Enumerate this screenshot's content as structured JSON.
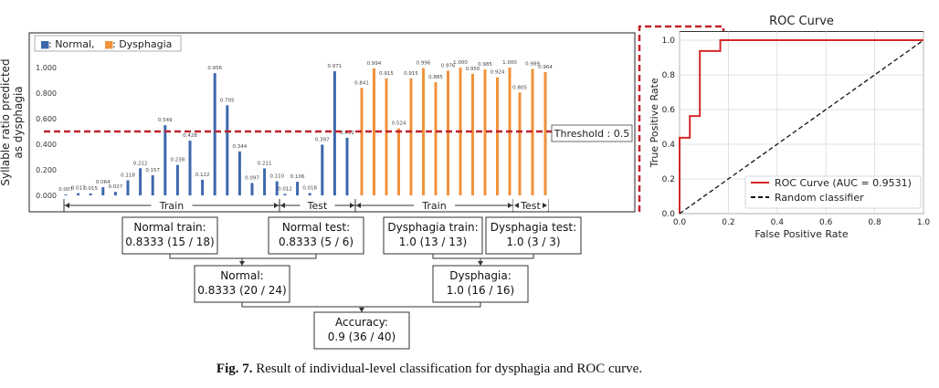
{
  "chart_data": [
    {
      "type": "bar",
      "ylabel": "Syllable ratio predicted as dysphagia",
      "ylim": [
        0,
        1.1
      ],
      "yticks": [
        "0.000",
        "0.200",
        "0.400",
        "0.600",
        "0.800",
        "1.000"
      ],
      "legend": {
        "placement": "top-left",
        "items": [
          {
            "marker": "■",
            "label": ": Normal,",
            "color": "#3d68ad"
          },
          {
            "marker": "■",
            "label": ": Dysphagia",
            "color": "#f0923b"
          }
        ]
      },
      "threshold": {
        "value": 0.5,
        "label": "Threshold : 0.5",
        "color": "#c0232b"
      },
      "groups": [
        {
          "name": "Normal train",
          "color": "#3d68ad",
          "values": [
            0.007,
            0.017,
            0.015,
            0.064,
            0.027,
            0.118,
            0.212,
            0.157,
            0.549,
            0.238,
            0.428,
            0.122,
            0.956,
            0.705,
            0.344,
            0.097,
            0.211,
            0.11
          ],
          "labels": [
            "0.007",
            "0.017",
            "0.015",
            "0.064",
            "0.027",
            "0.118",
            "0.212",
            "0.157",
            "0.549",
            "0.238",
            "0.428",
            "0.122",
            "0.956",
            "0.705",
            "0.344",
            "0.097",
            "0.211",
            "0.110"
          ]
        },
        {
          "name": "Normal test",
          "color": "#3d68ad",
          "values": [
            0.012,
            0.106,
            0.018,
            0.397,
            0.971,
            0.451
          ],
          "labels": [
            "0.012",
            "0.106",
            "0.018",
            "0.397",
            "0.971",
            "0.451"
          ]
        },
        {
          "name": "Dysphagia train",
          "color": "#f0923b",
          "values": [
            0.841,
            0.994,
            0.915,
            0.524,
            0.915,
            0.996,
            0.885,
            0.976,
            1.0,
            0.95,
            0.985,
            0.924,
            1.0
          ],
          "labels": [
            "0.841",
            "0.994",
            "0.915",
            "0.524",
            "0.915",
            "0.996",
            "0.885",
            "0.976",
            "1.000",
            "0.950",
            "0.985",
            "0.924",
            "1.000"
          ]
        },
        {
          "name": "Dysphagia test",
          "color": "#f0923b",
          "values": [
            0.805,
            0.989,
            0.964
          ],
          "labels": [
            "0.805",
            "0.989",
            "0.964"
          ]
        }
      ],
      "segments": [
        {
          "label": "Train"
        },
        {
          "label": "Test"
        },
        {
          "label": "Train"
        },
        {
          "label": "Test"
        }
      ]
    },
    {
      "type": "line",
      "title": "ROC Curve",
      "xlabel": "False Positive Rate",
      "ylabel": "True Positive Rate",
      "xlim": [
        0,
        1
      ],
      "ylim": [
        0,
        1.05
      ],
      "xticks": [
        "0.0",
        "0.2",
        "0.4",
        "0.6",
        "0.8",
        "1.0"
      ],
      "yticks": [
        "0.0",
        "0.2",
        "0.4",
        "0.6",
        "0.8",
        "1.0"
      ],
      "grid": true,
      "legend_placement": "bottom-right",
      "series": [
        {
          "name": "ROC Curve (AUC = 0.9531)",
          "color": "#d62728",
          "style": "solid",
          "x": [
            0,
            0,
            0.042,
            0.042,
            0.083,
            0.083,
            0.167,
            0.167,
            0.177,
            0.177,
            1
          ],
          "y": [
            0,
            0.4375,
            0.4375,
            0.5625,
            0.5625,
            0.9375,
            0.9375,
            1.0,
            1.0,
            1.0,
            1.0
          ]
        },
        {
          "name": "Random classifier",
          "color": "#111111",
          "style": "dashed",
          "x": [
            0,
            1
          ],
          "y": [
            0,
            1
          ]
        }
      ]
    }
  ],
  "flow": {
    "normal_train": {
      "title": "Normal train:",
      "value": "0.8333 (15 / 18)"
    },
    "normal_test": {
      "title": "Normal test:",
      "value": "0.8333 (5 / 6)"
    },
    "dysphagia_train": {
      "title": "Dysphagia train:",
      "value": "1.0 (13 / 13)"
    },
    "dysphagia_test": {
      "title": "Dysphagia test:",
      "value": "1.0 (3 / 3)"
    },
    "normal": {
      "title": "Normal:",
      "value": "0.8333 (20 / 24)"
    },
    "dysphagia": {
      "title": "Dysphagia:",
      "value": "1.0 (16 / 16)"
    },
    "accuracy": {
      "title": "Accuracy:",
      "value": "0.9 (36 / 40)"
    }
  },
  "caption": {
    "label": "Fig. 7.",
    "text": "  Result of individual-level classification for dysphagia and ROC curve."
  }
}
